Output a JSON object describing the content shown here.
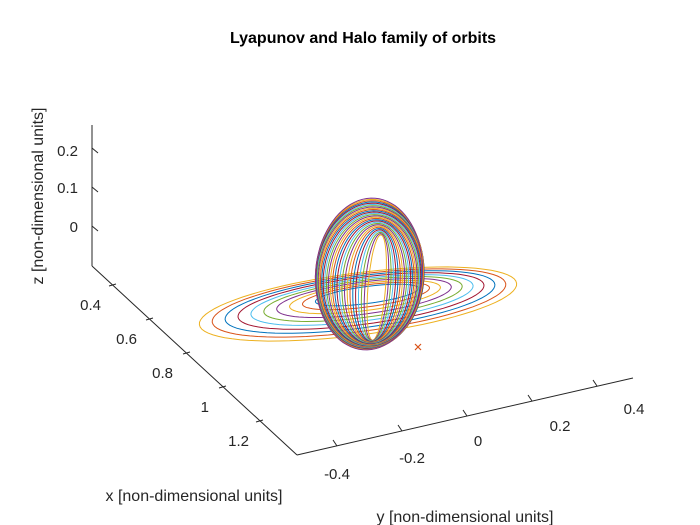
{
  "chart_data": {
    "type": "line",
    "title": "Lyapunov and Halo family of orbits",
    "xlabel": "x [non-dimensional units]",
    "ylabel": "y [non-dimensional units]",
    "zlabel": "z [non-dimensional units]",
    "x_ticks": [
      "0.4",
      "0.6",
      "0.8",
      "1",
      "1.2"
    ],
    "y_ticks": [
      "-0.4",
      "-0.2",
      "0",
      "0.2",
      "0.4"
    ],
    "z_ticks": [
      "0",
      "0.1",
      "0.2"
    ],
    "xlim": [
      0.3,
      1.3
    ],
    "ylim": [
      -0.5,
      0.5
    ],
    "zlim": [
      -0.1,
      0.3
    ],
    "grid": false,
    "colors": [
      "#0072BD",
      "#D95319",
      "#EDB120",
      "#7E2F8E",
      "#77AC30",
      "#4DBEEE",
      "#A2142F"
    ],
    "marker": {
      "symbol": "x",
      "color": "#D95319"
    },
    "families": [
      {
        "family": "lyapunov",
        "orbits": 10
      },
      {
        "family": "halo",
        "orbits": 30
      }
    ]
  }
}
